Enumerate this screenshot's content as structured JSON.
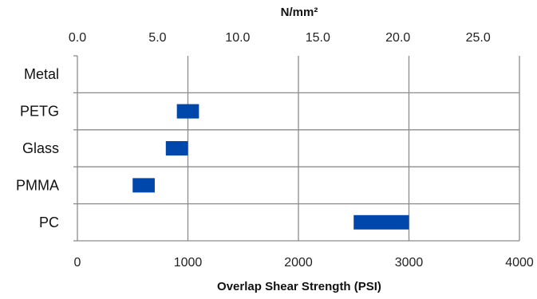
{
  "chart_data": {
    "type": "bar",
    "orientation": "horizontal-range",
    "categories": [
      "Metal",
      "PETG",
      "Glass",
      "PMMA",
      "PC"
    ],
    "ranges": [
      {
        "category": "Metal",
        "min": null,
        "max": null
      },
      {
        "category": "PETG",
        "min": 900,
        "max": 1100
      },
      {
        "category": "Glass",
        "min": 800,
        "max": 1000
      },
      {
        "category": "PMMA",
        "min": 500,
        "max": 700
      },
      {
        "category": "PC",
        "min": 2500,
        "max": 3000
      }
    ],
    "xlabel": "Overlap Shear Strength (PSI)",
    "xlim": [
      0,
      4000
    ],
    "x_ticks": [
      "0",
      "1000",
      "2000",
      "3000",
      "4000"
    ],
    "secondary_xlabel": "N/mm²",
    "secondary_xlim": [
      0,
      27.58
    ],
    "secondary_x_ticks": [
      "0.0",
      "5.0",
      "10.0",
      "15.0",
      "20.0",
      "25.0"
    ],
    "grid": true,
    "bar_color": "#0047AB",
    "grid_color": "#8c8c8c"
  }
}
